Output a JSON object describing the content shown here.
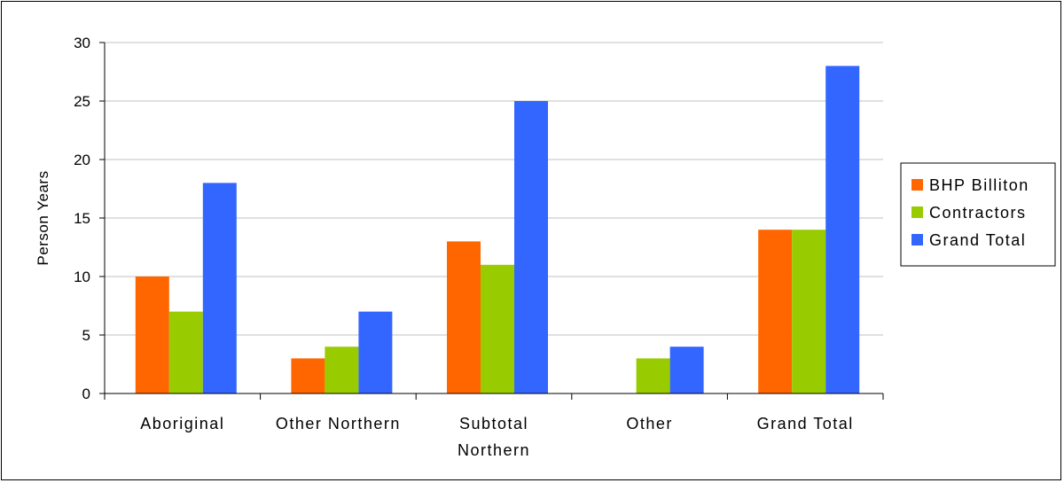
{
  "chart_data": {
    "type": "bar",
    "title": "",
    "xlabel": "",
    "ylabel": "Person Years",
    "ylim": [
      0,
      30
    ],
    "yticks": [
      0,
      5,
      10,
      15,
      20,
      25,
      30
    ],
    "grid": true,
    "legend_position": "right",
    "categories": [
      [
        "Aboriginal"
      ],
      [
        "Other Northern"
      ],
      [
        "Subtotal",
        "Northern"
      ],
      [
        "Other"
      ],
      [
        "Grand Total"
      ]
    ],
    "series": [
      {
        "name": "BHP Billiton",
        "color": "#ff6600",
        "values": [
          10,
          3,
          13,
          0,
          14
        ]
      },
      {
        "name": "Contractors",
        "color": "#99cc00",
        "values": [
          7,
          4,
          11,
          3,
          14
        ]
      },
      {
        "name": "Grand Total",
        "color": "#3366ff",
        "values": [
          18,
          7,
          25,
          4,
          28
        ]
      }
    ]
  }
}
